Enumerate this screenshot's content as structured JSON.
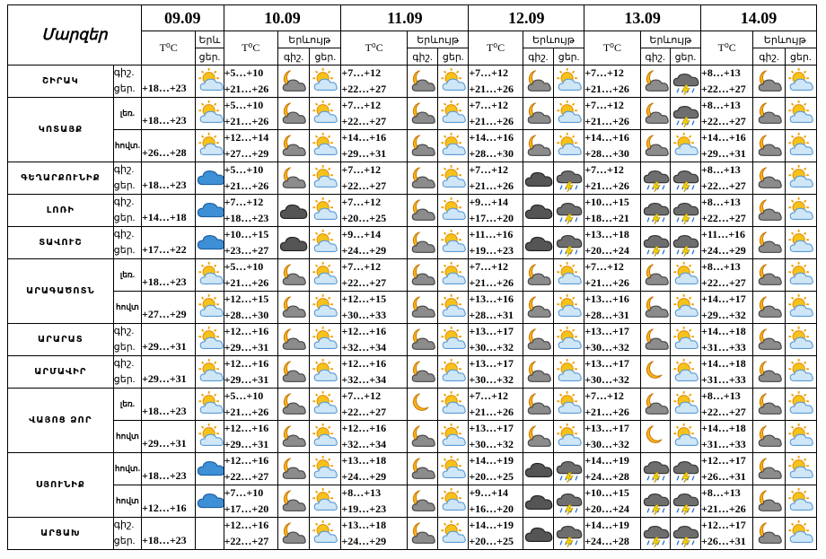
{
  "header": {
    "region_label": "Մարզեր",
    "dates": [
      "09.09",
      "10.09",
      "11.09",
      "12.09",
      "13.09",
      "14.09"
    ],
    "temp_label": "T⁰C",
    "phenom_label": "Երևույթ",
    "phenom_label_cut": "Երև",
    "day_abbr": "ցեր.",
    "night_abbr": "գիշ.",
    "day_label": "ցեր.",
    "night_label": "գիշ."
  },
  "rows": [
    {
      "region": "ՇԻՐԱԿ",
      "sub": "",
      "t": [
        [
          "+18…+23"
        ],
        [
          "+5…+10",
          "+21…+26"
        ],
        [
          "+7…+12",
          "+22…+27"
        ],
        [
          "+7…+12",
          "+21…+26"
        ],
        [
          "+7…+12",
          "+21…+26"
        ],
        [
          "+8…+13",
          "+22…+27"
        ]
      ],
      "i": [
        [
          "sun_cloud"
        ],
        [
          "moon_cloud",
          "sun_cloud"
        ],
        [
          "moon_cloud",
          "sun_cloud"
        ],
        [
          "moon_cloud",
          "sun_cloud"
        ],
        [
          "moon_cloud",
          "storm"
        ],
        [
          "moon_cloud",
          "sun_cloud"
        ]
      ]
    },
    {
      "region": "ԿՈՏԱՅՔ",
      "sub": "լեռ.",
      "t": [
        [
          "+18…+23"
        ],
        [
          "+5…+10",
          "+21…+26"
        ],
        [
          "+7…+12",
          "+22…+27"
        ],
        [
          "+7…+12",
          "+21…+26"
        ],
        [
          "+7…+12",
          "+21…+26"
        ],
        [
          "+8…+13",
          "+22…+27"
        ]
      ],
      "i": [
        [
          "sun_cloud"
        ],
        [
          "moon_cloud",
          "sun_cloud"
        ],
        [
          "moon_cloud",
          "sun_cloud"
        ],
        [
          "moon_cloud",
          "sun_cloud"
        ],
        [
          "moon_cloud",
          "storm"
        ],
        [
          "moon_cloud",
          "sun_cloud"
        ]
      ]
    },
    {
      "region": "",
      "sub": "հովտ.",
      "t": [
        [
          "+26…+28"
        ],
        [
          "+12…+14",
          "+27…+29"
        ],
        [
          "+14…+16",
          "+29…+31"
        ],
        [
          "+14…+16",
          "+28…+30"
        ],
        [
          "+14…+16",
          "+28…+30"
        ],
        [
          "+14…+16",
          "+29…+31"
        ]
      ],
      "i": [
        [
          "sun_cloud"
        ],
        [
          "moon_cloud",
          "sun_cloud"
        ],
        [
          "moon_cloud",
          "sun_cloud"
        ],
        [
          "moon_cloud",
          "sun_cloud"
        ],
        [
          "moon_cloud",
          "sun_cloud"
        ],
        [
          "moon_cloud",
          "sun_cloud"
        ]
      ]
    },
    {
      "region": "ԳԵՂԱՐՔՈՒՆԻՔ",
      "sub": "",
      "t": [
        [
          "+18…+23"
        ],
        [
          "+5…+10",
          "+21…+26"
        ],
        [
          "+7…+12",
          "+22…+27"
        ],
        [
          "+7…+12",
          "+21…+26"
        ],
        [
          "+7…+12",
          "+21…+26"
        ],
        [
          "+8…+13",
          "+22…+27"
        ]
      ],
      "i": [
        [
          "cloud_blue"
        ],
        [
          "moon_cloud",
          "sun_cloud"
        ],
        [
          "moon_cloud",
          "sun_cloud"
        ],
        [
          "dark_cloud",
          "storm"
        ],
        [
          "storm",
          "storm"
        ],
        [
          "moon_cloud",
          "sun_cloud"
        ]
      ]
    },
    {
      "region": "ԼՈՌԻ",
      "sub": "",
      "t": [
        [
          "+14…+18"
        ],
        [
          "+7…+12",
          "+18…+23"
        ],
        [
          "+7…+12",
          "+20…+25"
        ],
        [
          "+9…+14",
          "+17…+20"
        ],
        [
          "+10…+15",
          "+18…+21"
        ],
        [
          "+8…+13",
          "+22…+27"
        ]
      ],
      "i": [
        [
          "cloud_blue"
        ],
        [
          "dark_cloud",
          "sun_cloud"
        ],
        [
          "moon_cloud",
          "sun_cloud"
        ],
        [
          "dark_cloud",
          "storm"
        ],
        [
          "storm",
          "storm"
        ],
        [
          "moon_cloud",
          "sun_cloud"
        ]
      ]
    },
    {
      "region": "ՏԱՎՈՒՇ",
      "sub": "",
      "t": [
        [
          "+17…+22"
        ],
        [
          "+10…+15",
          "+23…+27"
        ],
        [
          "+9…+14",
          "+24…+29"
        ],
        [
          "+11…+16",
          "+19…+23"
        ],
        [
          "+13…+18",
          "+20…+24"
        ],
        [
          "+11…+16",
          "+24…+29"
        ]
      ],
      "i": [
        [
          "cloud_blue"
        ],
        [
          "dark_cloud",
          "sun_cloud"
        ],
        [
          "moon_cloud",
          "sun_cloud"
        ],
        [
          "dark_cloud",
          "storm"
        ],
        [
          "storm",
          "storm"
        ],
        [
          "moon_cloud",
          "sun_cloud"
        ]
      ]
    },
    {
      "region": "ԱՐԱԳԱԾՈՏՆ",
      "sub": "լեռ.",
      "t": [
        [
          "+18…+23"
        ],
        [
          "+5…+10",
          "+21…+26"
        ],
        [
          "+7…+12",
          "+22…+27"
        ],
        [
          "+7…+12",
          "+21…+26"
        ],
        [
          "+7…+12",
          "+21…+26"
        ],
        [
          "+8…+13",
          "+22…+27"
        ]
      ],
      "i": [
        [
          "sun_cloud"
        ],
        [
          "moon_cloud",
          "sun_cloud"
        ],
        [
          "moon_cloud",
          "sun_cloud"
        ],
        [
          "moon_cloud",
          "sun_cloud"
        ],
        [
          "moon_cloud",
          "sun_cloud"
        ],
        [
          "moon_cloud",
          "sun_cloud"
        ]
      ]
    },
    {
      "region": "",
      "sub": "հովտ",
      "t": [
        [
          "+27…+29"
        ],
        [
          "+12…+15",
          "+28…+30"
        ],
        [
          "+12…+15",
          "+30…+33"
        ],
        [
          "+13…+16",
          "+28…+31"
        ],
        [
          "+13…+16",
          "+28…+31"
        ],
        [
          "+14…+17",
          "+29…+32"
        ]
      ],
      "i": [
        [
          "sun_cloud"
        ],
        [
          "moon_cloud",
          "sun_cloud"
        ],
        [
          "moon_cloud",
          "sun_cloud"
        ],
        [
          "moon_cloud",
          "sun_cloud"
        ],
        [
          "moon_cloud",
          "sun_cloud"
        ],
        [
          "moon_cloud",
          "sun_cloud"
        ]
      ]
    },
    {
      "region": "ԱՐԱՐԱՏ",
      "sub": "",
      "t": [
        [
          "+29…+31"
        ],
        [
          "+12…+16",
          "+29…+31"
        ],
        [
          "+12…+16",
          "+32…+34"
        ],
        [
          "+13…+17",
          "+30…+32"
        ],
        [
          "+13…+17",
          "+30…+32"
        ],
        [
          "+14…+18",
          "+31…+33"
        ]
      ],
      "i": [
        [
          "sun_cloud"
        ],
        [
          "moon_cloud",
          "sun_cloud"
        ],
        [
          "moon_cloud",
          "sun_cloud"
        ],
        [
          "moon_cloud",
          "sun_cloud"
        ],
        [
          "moon_cloud",
          "sun_cloud"
        ],
        [
          "moon_cloud",
          "sun_cloud"
        ]
      ]
    },
    {
      "region": "ԱՐՄԱՎԻՐ",
      "sub": "",
      "t": [
        [
          "+29…+31"
        ],
        [
          "+12…+16",
          "+29…+31"
        ],
        [
          "+12…+16",
          "+32…+34"
        ],
        [
          "+13…+17",
          "+30…+32"
        ],
        [
          "+13…+17",
          "+30…+32"
        ],
        [
          "+14…+18",
          "+31…+33"
        ]
      ],
      "i": [
        [
          "sun_cloud"
        ],
        [
          "moon_cloud",
          "sun_cloud"
        ],
        [
          "moon_cloud",
          "sun_cloud"
        ],
        [
          "moon_cloud",
          "sun_cloud"
        ],
        [
          "moon",
          "sun_cloud"
        ],
        [
          "moon_cloud",
          "sun_cloud"
        ]
      ]
    },
    {
      "region": "ՎԱՅՈՑ ՁՈՐ",
      "sub": "լեռ.",
      "t": [
        [
          "+18…+23"
        ],
        [
          "+5…+10",
          "+21…+26"
        ],
        [
          "+7…+12",
          "+22…+27"
        ],
        [
          "+7…+12",
          "+21…+26"
        ],
        [
          "+7…+12",
          "+21…+26"
        ],
        [
          "+8…+13",
          "+22…+27"
        ]
      ],
      "i": [
        [
          "sun_cloud"
        ],
        [
          "moon_cloud",
          "sun_cloud"
        ],
        [
          "moon",
          "sun_cloud"
        ],
        [
          "moon_cloud",
          "sun_cloud"
        ],
        [
          "moon_cloud",
          "sun_cloud"
        ],
        [
          "moon_cloud",
          "sun_cloud"
        ]
      ]
    },
    {
      "region": "",
      "sub": "հովտ",
      "t": [
        [
          "+29…+31"
        ],
        [
          "+12…+16",
          "+29…+31"
        ],
        [
          "+12…+16",
          "+32…+34"
        ],
        [
          "+13…+17",
          "+30…+32"
        ],
        [
          "+13…+17",
          "+30…+32"
        ],
        [
          "+14…+18",
          "+31…+33"
        ]
      ],
      "i": [
        [
          "sun_cloud"
        ],
        [
          "moon_cloud",
          "sun_cloud"
        ],
        [
          "moon_cloud",
          "sun_cloud"
        ],
        [
          "moon_cloud",
          "sun_cloud"
        ],
        [
          "moon",
          "sun_cloud"
        ],
        [
          "moon_cloud",
          "sun_cloud"
        ]
      ]
    },
    {
      "region": "ՍՅՈՒՆԻՔ",
      "sub": "հովտ.",
      "t": [
        [
          "+18…+23"
        ],
        [
          "+12…+16",
          "+22…+27"
        ],
        [
          "+13…+18",
          "+24…+29"
        ],
        [
          "+14…+19",
          "+20…+25"
        ],
        [
          "+14…+19",
          "+24…+28"
        ],
        [
          "+12…+17",
          "+26…+31"
        ]
      ],
      "i": [
        [
          "cloud_blue"
        ],
        [
          "moon_cloud",
          "sun_cloud"
        ],
        [
          "moon_cloud",
          "sun_cloud"
        ],
        [
          "dark_cloud",
          "storm"
        ],
        [
          "storm",
          "storm"
        ],
        [
          "moon_cloud",
          "sun_cloud"
        ]
      ]
    },
    {
      "region": "",
      "sub": "հովտ",
      "t": [
        [
          "+12…+16"
        ],
        [
          "+7…+10",
          "+17…+20"
        ],
        [
          "+8…+13",
          "+19…+23"
        ],
        [
          "+9…+14",
          "+16…+20"
        ],
        [
          "+10…+15",
          "+20…+24"
        ],
        [
          "+8…+13",
          "+21…+26"
        ]
      ],
      "i": [
        [
          "cloud_blue"
        ],
        [
          "moon_cloud",
          "sun_cloud"
        ],
        [
          "moon_cloud",
          "sun_cloud"
        ],
        [
          "dark_cloud",
          "storm"
        ],
        [
          "storm",
          "storm"
        ],
        [
          "moon_cloud",
          "sun_cloud"
        ]
      ]
    },
    {
      "region": "ԱՐՑԱԽ",
      "sub": "",
      "t": [
        [
          "+18…+23"
        ],
        [
          "+12…+16",
          "+22…+27"
        ],
        [
          "+13…+18",
          "+24…+29"
        ],
        [
          "+14…+19",
          "+20…+25"
        ],
        [
          "+14…+19",
          "+24…+28"
        ],
        [
          "+12…+17",
          "+26…+31"
        ]
      ],
      "i": [
        [
          "none"
        ],
        [
          "moon_cloud",
          "sun_cloud"
        ],
        [
          "moon_cloud",
          "sun_cloud"
        ],
        [
          "dark_cloud",
          "storm"
        ],
        [
          "storm",
          "storm"
        ],
        [
          "moon_cloud",
          "sun_cloud"
        ]
      ]
    }
  ]
}
